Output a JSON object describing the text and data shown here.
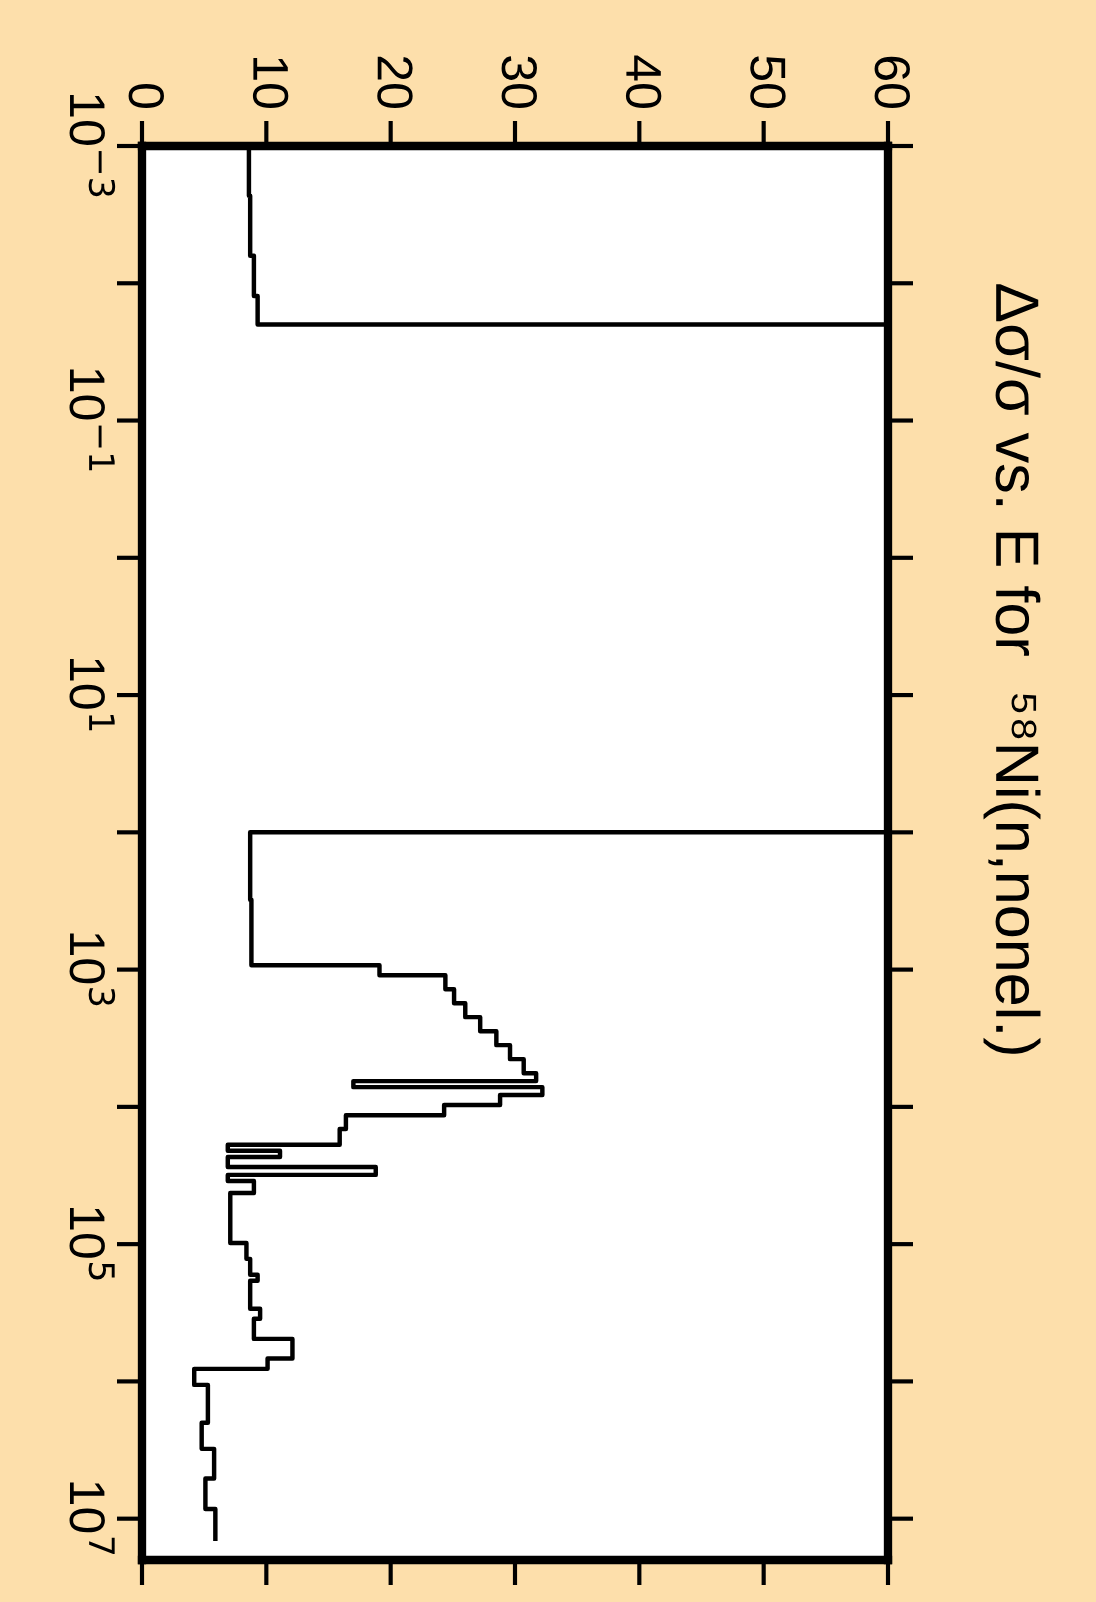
{
  "chart_data": {
    "type": "step",
    "orientation": "horizontal",
    "title": "Δσ/σ vs. E for  ⁵⁸Ni(n,nonel.)",
    "x": [
      0.001,
      0.0023,
      0.0063,
      0.0124,
      0.02,
      100,
      310,
      930,
      1100,
      1390,
      1760,
      2220,
      2810,
      3550,
      4490,
      5680,
      6490,
      7180,
      8200,
      9700,
      11500,
      14500,
      18900,
      20900,
      23200,
      27400,
      31300,
      34700,
      42400,
      98000,
      128000,
      167000,
      185000,
      296000,
      350000,
      490000,
      680000,
      810000,
      1060000,
      2000000,
      3100000,
      5100000,
      8500000,
      14000000
    ],
    "values": [
      8.6,
      8.7,
      9.0,
      9.3,
      60,
      8.7,
      8.8,
      19.1,
      24.4,
      25.1,
      26.0,
      27.2,
      28.5,
      29.6,
      30.7,
      31.7,
      17.0,
      32.2,
      28.8,
      24.3,
      16.4,
      15.9,
      6.9,
      11.1,
      6.9,
      18.8,
      6.9,
      9.0,
      7.1,
      8.4,
      8.7,
      9.3,
      8.7,
      9.5,
      9.0,
      12.1,
      10.1,
      4.2,
      5.3,
      4.8,
      5.8,
      5.1,
      5.9,
      5.9
    ],
    "color": "#000000",
    "xlim": [
      0,
      60
    ],
    "xticks": [
      0,
      10,
      20,
      30,
      40,
      50,
      60
    ],
    "ylim": [
      20000000,
      0.001
    ],
    "log": "y",
    "yticks": [
      {
        "value": 0.001,
        "label": "10$^{−3}$"
      },
      {
        "value": 0.01,
        "label": null
      },
      {
        "value": 0.1,
        "label": "10$^{−1}$"
      },
      {
        "value": 1,
        "label": null
      },
      {
        "value": 10,
        "label": "10$^{1}$"
      },
      {
        "value": 100,
        "label": null
      },
      {
        "value": 1000,
        "label": "10$^{3}$"
      },
      {
        "value": 10000,
        "label": null
      },
      {
        "value": 100000,
        "label": "10$^{5}$"
      },
      {
        "value": 1000000,
        "label": null
      },
      {
        "value": 10000000,
        "label": "10$^{7}$"
      }
    ]
  }
}
